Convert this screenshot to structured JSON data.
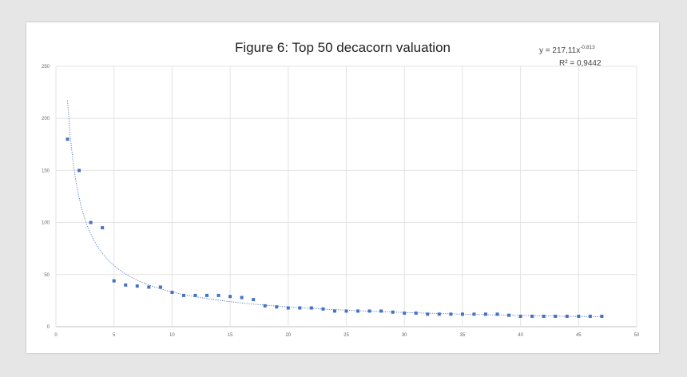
{
  "chart_data": {
    "type": "scatter",
    "title": "Figure 6: Top 50 decacorn valuation",
    "xlabel": "",
    "ylabel": "",
    "xlim": [
      0,
      50
    ],
    "ylim": [
      0,
      250
    ],
    "x_ticks": [
      0,
      5,
      10,
      15,
      20,
      25,
      30,
      35,
      40,
      45,
      50
    ],
    "y_ticks": [
      0,
      50,
      100,
      150,
      200,
      250
    ],
    "x_tick_labels": [
      "0",
      "5",
      "10",
      "15",
      "20",
      "25",
      "30",
      "35",
      "40",
      "45",
      "50"
    ],
    "y_tick_labels": [
      "0",
      "50",
      "100",
      "150",
      "200",
      "250"
    ],
    "grid": true,
    "legend": "none",
    "marker_color": "#4472c4",
    "trendline_color": "#4472c4",
    "series": [
      {
        "x": [
          1,
          2,
          3,
          4,
          5,
          6,
          7,
          8,
          9,
          10,
          11,
          12,
          13,
          14,
          15,
          16,
          17,
          18,
          19,
          20,
          21,
          22,
          23,
          24,
          25,
          26,
          27,
          28,
          29,
          30,
          31,
          32,
          33,
          34,
          35,
          36,
          37,
          38,
          39,
          40,
          41,
          42,
          43,
          44,
          45,
          46,
          47
        ],
        "values": [
          180,
          150,
          100,
          95,
          44,
          40,
          39,
          38,
          38,
          33,
          30,
          30,
          30,
          30,
          29,
          28,
          26,
          20,
          19,
          18,
          18,
          18,
          17,
          15,
          15,
          15,
          15,
          15,
          14,
          13,
          13,
          12,
          12,
          12,
          12,
          12,
          12,
          12,
          11,
          10,
          10,
          10,
          10,
          10,
          10,
          10,
          10
        ]
      }
    ],
    "trendline": {
      "type": "power",
      "a": 217.11,
      "b": -0.813,
      "x_range": [
        1,
        47
      ],
      "equation_prefix": "y = 217,11x",
      "equation_exponent": "-0,813",
      "r_squared_label": "R² = 0,9442"
    }
  }
}
